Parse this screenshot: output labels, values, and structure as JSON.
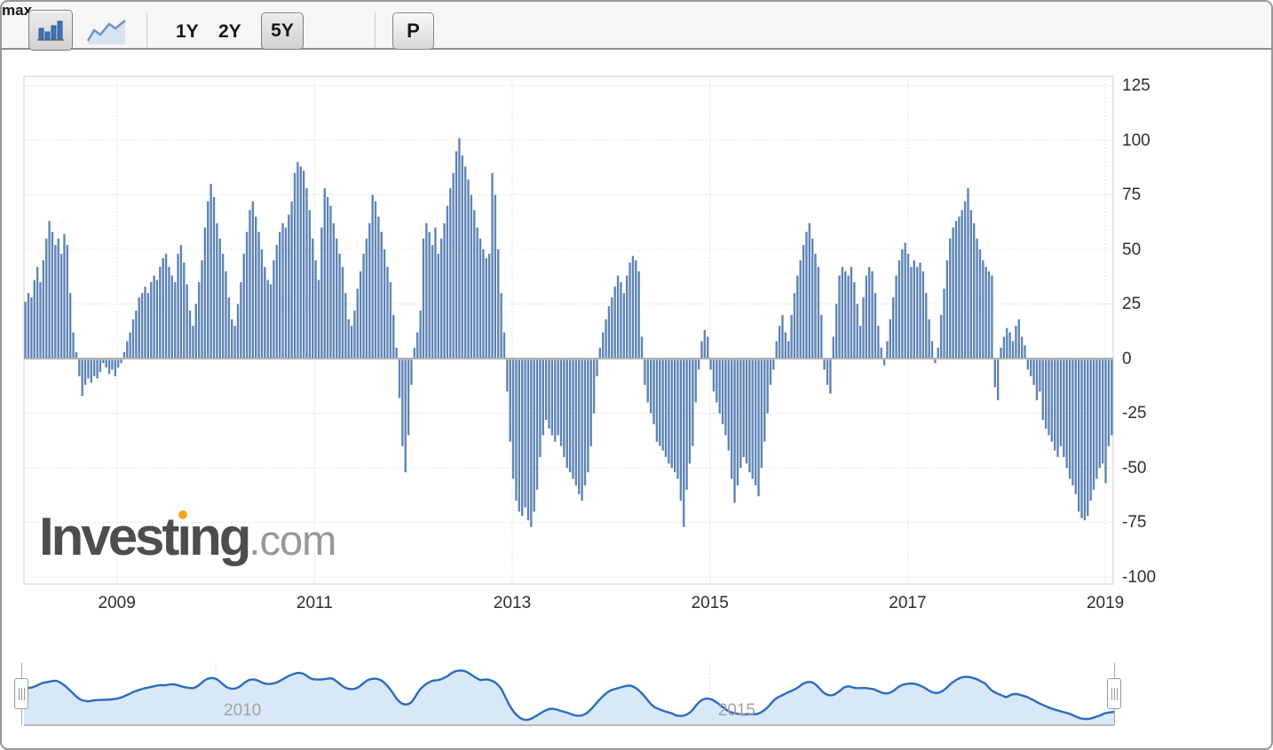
{
  "toolbar": {
    "chart_type_buttons": [
      {
        "name": "bar-chart",
        "selected": true
      },
      {
        "name": "line-chart",
        "selected": false
      }
    ],
    "range_buttons": [
      {
        "label": "1Y",
        "selected": false
      },
      {
        "label": "2Y",
        "selected": false
      },
      {
        "label": "5Y",
        "selected": true
      },
      {
        "label": "max",
        "selected": false
      }
    ],
    "settings_button_label": "P"
  },
  "watermark": {
    "brand_prefix": "Invest",
    "brand_i": "ı",
    "brand_rest": "ng",
    "suffix": ".com",
    "dot_color": "#f7a41f"
  },
  "chart_data": {
    "type": "bar",
    "title": "",
    "xlabel": "",
    "ylabel": "",
    "x_start_year": 2008.06,
    "x_end_year": 2019.08,
    "ylim": [
      -100,
      125
    ],
    "y_ticks": [
      125,
      100,
      75,
      50,
      25,
      0,
      -25,
      -50,
      -75,
      -100
    ],
    "x_tick_years": [
      2009,
      2011,
      2013,
      2015,
      2017,
      2019
    ],
    "x_tick_labels": [
      "2009",
      "2011",
      "2013",
      "2015",
      "2017",
      "2019"
    ],
    "bar_color": "#5e84b5",
    "zero_line_color": "#b0b0b0",
    "grid_color": "#dcdcdc",
    "values": [
      26,
      30,
      28,
      36,
      42,
      35,
      45,
      55,
      63,
      58,
      52,
      55,
      48,
      57,
      52,
      30,
      12,
      3,
      -8,
      -17,
      -12,
      -9,
      -11,
      -8,
      -9,
      -6,
      -2,
      -4,
      -7,
      -5,
      -8,
      -4,
      -2,
      3,
      8,
      12,
      18,
      22,
      28,
      30,
      33,
      30,
      35,
      38,
      36,
      42,
      46,
      48,
      42,
      38,
      35,
      48,
      52,
      44,
      34,
      22,
      15,
      25,
      35,
      45,
      60,
      72,
      80,
      74,
      62,
      55,
      48,
      40,
      28,
      18,
      15,
      25,
      35,
      48,
      58,
      68,
      72,
      65,
      58,
      50,
      42,
      36,
      34,
      45,
      52,
      58,
      62,
      60,
      66,
      72,
      85,
      90,
      88,
      86,
      78,
      68,
      55,
      45,
      36,
      60,
      78,
      74,
      70,
      62,
      55,
      48,
      42,
      30,
      18,
      15,
      22,
      32,
      40,
      48,
      55,
      62,
      75,
      72,
      65,
      58,
      50,
      42,
      35,
      20,
      5,
      -18,
      -40,
      -52,
      -35,
      -12,
      5,
      12,
      22,
      55,
      62,
      58,
      52,
      60,
      48,
      55,
      62,
      70,
      78,
      85,
      95,
      101,
      93,
      88,
      82,
      75,
      68,
      60,
      55,
      50,
      46,
      48,
      85,
      75,
      50,
      30,
      12,
      -15,
      -38,
      -55,
      -65,
      -70,
      -72,
      -68,
      -74,
      -77,
      -70,
      -60,
      -45,
      -35,
      -28,
      -32,
      -35,
      -38,
      -35,
      -40,
      -45,
      -50,
      -52,
      -55,
      -58,
      -62,
      -65,
      -58,
      -52,
      -40,
      -25,
      -8,
      5,
      12,
      18,
      24,
      28,
      33,
      38,
      35,
      30,
      38,
      44,
      47,
      45,
      40,
      10,
      -12,
      -20,
      -25,
      -30,
      -38,
      -40,
      -42,
      -45,
      -48,
      -50,
      -52,
      -55,
      -65,
      -77,
      -60,
      -48,
      -40,
      -20,
      -5,
      8,
      13,
      10,
      -5,
      -15,
      -20,
      -25,
      -30,
      -35,
      -42,
      -55,
      -66,
      -58,
      -50,
      -45,
      -48,
      -52,
      -55,
      -58,
      -63,
      -50,
      -38,
      -25,
      -12,
      -5,
      8,
      15,
      20,
      12,
      8,
      20,
      30,
      38,
      45,
      52,
      58,
      62,
      55,
      48,
      42,
      20,
      -5,
      -12,
      -16,
      10,
      25,
      38,
      42,
      40,
      38,
      42,
      35,
      25,
      15,
      28,
      38,
      42,
      40,
      30,
      15,
      5,
      -3,
      8,
      18,
      28,
      38,
      45,
      50,
      53,
      48,
      42,
      45,
      42,
      44,
      40,
      30,
      18,
      8,
      -2,
      5,
      20,
      32,
      45,
      55,
      60,
      63,
      65,
      68,
      72,
      78,
      68,
      62,
      55,
      50,
      45,
      42,
      40,
      38,
      -13,
      -19,
      5,
      10,
      14,
      12,
      8,
      15,
      18,
      10,
      6,
      -5,
      -8,
      -12,
      -19,
      -15,
      -28,
      -32,
      -35,
      -38,
      -42,
      -45,
      -40,
      -45,
      -50,
      -55,
      -58,
      -62,
      -70,
      -73,
      -74,
      -72,
      -65,
      -60,
      -55,
      -50,
      -48,
      -57,
      -40,
      -35
    ]
  },
  "navigator": {
    "tick_labels": [
      {
        "label": "2010",
        "year": 2010
      },
      {
        "label": "2015",
        "year": 2015
      }
    ],
    "line_color": "#2a6cc0",
    "fill_color": "#d9e8f8",
    "baseline_color": "#b9b9b9"
  }
}
